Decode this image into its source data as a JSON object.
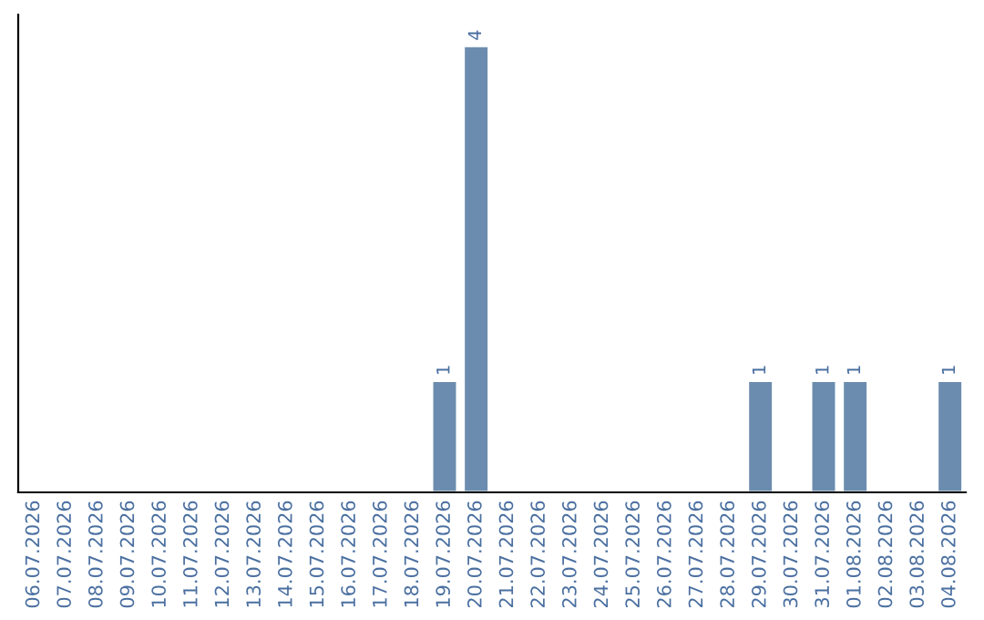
{
  "chart_data": {
    "type": "bar",
    "categories": [
      "06.07.2026",
      "07.07.2026",
      "08.07.2026",
      "09.07.2026",
      "10.07.2026",
      "11.07.2026",
      "12.07.2026",
      "13.07.2026",
      "14.07.2026",
      "15.07.2026",
      "16.07.2026",
      "17.07.2026",
      "18.07.2026",
      "19.07.2026",
      "20.07.2026",
      "21.07.2026",
      "22.07.2026",
      "23.07.2026",
      "24.07.2026",
      "25.07.2026",
      "26.07.2026",
      "27.07.2026",
      "28.07.2026",
      "29.07.2026",
      "30.07.2026",
      "31.07.2026",
      "01.08.2026",
      "02.08.2026",
      "03.08.2026",
      "04.08.2026"
    ],
    "values": [
      null,
      null,
      null,
      null,
      null,
      null,
      null,
      null,
      null,
      null,
      null,
      null,
      null,
      1,
      4,
      null,
      null,
      null,
      null,
      null,
      null,
      null,
      null,
      1,
      null,
      1,
      1,
      null,
      null,
      1
    ],
    "value_labels": [
      null,
      null,
      null,
      null,
      null,
      null,
      null,
      null,
      null,
      null,
      null,
      null,
      null,
      "1",
      "4",
      null,
      null,
      null,
      null,
      null,
      null,
      null,
      null,
      "1",
      null,
      "1",
      "1",
      null,
      null,
      "1"
    ],
    "color": "#6b8cae",
    "tick_labels": "x",
    "grid": false,
    "legend": false
  }
}
